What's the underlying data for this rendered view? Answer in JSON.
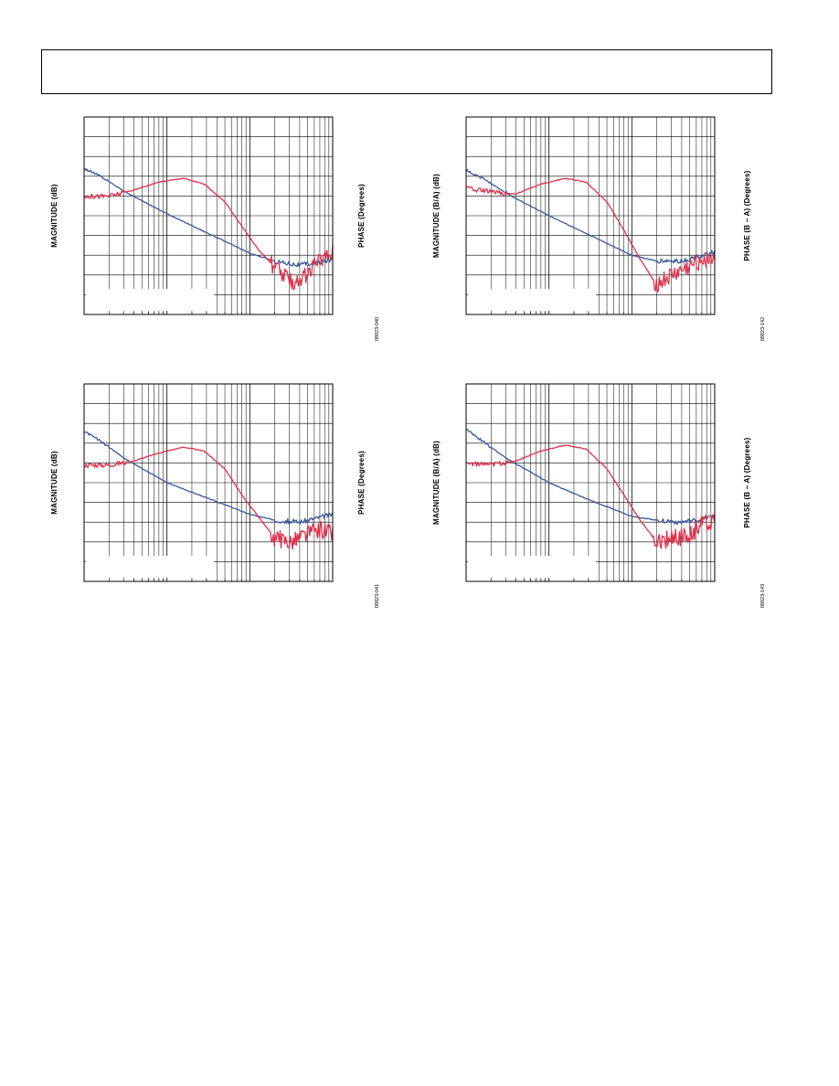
{
  "page": {
    "header_title": ""
  },
  "colors": {
    "magnitude": "#3a5a9a",
    "phase": "#e0304a",
    "grid": "#000000",
    "legend_bg": "#ffffff"
  },
  "chart_data": [
    {
      "type": "line",
      "ylabel": "MAGNITUDE (dB)",
      "ylabel_right": "PHASE (Degrees)",
      "figure_id": "08823-040",
      "x_scale": "log",
      "x_decades": 3,
      "y_divisions": 10,
      "grid": true,
      "series": [
        {
          "key": "magnitude",
          "color": "#3a5a9a",
          "x": [
            0,
            0.2,
            0.5,
            1.0,
            1.5,
            2.0,
            2.3,
            2.6,
            2.8,
            3.0
          ],
          "y": [
            0.74,
            0.7,
            0.62,
            0.51,
            0.41,
            0.31,
            0.27,
            0.25,
            0.26,
            0.28
          ]
        },
        {
          "key": "phase",
          "color": "#e0304a",
          "x": [
            0,
            0.3,
            0.6,
            0.9,
            1.2,
            1.45,
            1.7,
            1.9,
            2.1,
            2.3,
            2.5,
            2.7,
            2.85,
            3.0
          ],
          "y": [
            0.6,
            0.6,
            0.63,
            0.67,
            0.69,
            0.66,
            0.57,
            0.45,
            0.33,
            0.24,
            0.16,
            0.2,
            0.28,
            0.32
          ]
        }
      ]
    },
    {
      "type": "line",
      "ylabel": "MAGNITUDE (B/A) (dB)",
      "ylabel_right": "PHASE (B – A) (Degrees)",
      "figure_id": "08823-142",
      "x_scale": "log",
      "x_decades": 3,
      "y_divisions": 10,
      "grid": true,
      "series": [
        {
          "key": "magnitude",
          "color": "#3a5a9a",
          "x": [
            0,
            0.2,
            0.5,
            1.0,
            1.5,
            2.0,
            2.3,
            2.6,
            2.8,
            3.0
          ],
          "y": [
            0.73,
            0.69,
            0.61,
            0.5,
            0.4,
            0.3,
            0.27,
            0.27,
            0.29,
            0.32
          ]
        },
        {
          "key": "phase",
          "color": "#e0304a",
          "x": [
            0,
            0.3,
            0.6,
            0.9,
            1.2,
            1.45,
            1.7,
            1.9,
            2.1,
            2.3,
            2.5,
            2.7,
            2.85,
            3.0
          ],
          "y": [
            0.64,
            0.62,
            0.61,
            0.66,
            0.69,
            0.67,
            0.57,
            0.43,
            0.28,
            0.15,
            0.2,
            0.24,
            0.28,
            0.29
          ]
        }
      ]
    },
    {
      "type": "line",
      "ylabel": "MAGNITUDE (dB)",
      "ylabel_right": "PHASE (Degrees)",
      "figure_id": "08823-041",
      "x_scale": "log",
      "x_decades": 3,
      "y_divisions": 10,
      "grid": true,
      "series": [
        {
          "key": "magnitude",
          "color": "#3a5a9a",
          "x": [
            0,
            0.2,
            0.5,
            1.0,
            1.5,
            2.0,
            2.3,
            2.6,
            2.8,
            3.0
          ],
          "y": [
            0.76,
            0.71,
            0.62,
            0.5,
            0.42,
            0.34,
            0.31,
            0.3,
            0.32,
            0.34
          ]
        },
        {
          "key": "phase",
          "color": "#e0304a",
          "x": [
            0,
            0.3,
            0.6,
            0.9,
            1.2,
            1.45,
            1.7,
            1.9,
            2.1,
            2.3,
            2.5,
            2.7,
            2.85,
            3.0
          ],
          "y": [
            0.59,
            0.59,
            0.61,
            0.65,
            0.68,
            0.66,
            0.57,
            0.44,
            0.33,
            0.22,
            0.2,
            0.24,
            0.26,
            0.24
          ]
        }
      ]
    },
    {
      "type": "line",
      "ylabel": "MAGNITUDE (B/A) (dB)",
      "ylabel_right": "PHASE (B – A) (Degrees)",
      "figure_id": "08823-143",
      "x_scale": "log",
      "x_decades": 3,
      "y_divisions": 10,
      "grid": true,
      "series": [
        {
          "key": "magnitude",
          "color": "#3a5a9a",
          "x": [
            0,
            0.2,
            0.5,
            1.0,
            1.5,
            2.0,
            2.3,
            2.6,
            2.8,
            3.0
          ],
          "y": [
            0.77,
            0.71,
            0.62,
            0.5,
            0.41,
            0.33,
            0.31,
            0.3,
            0.31,
            0.33
          ]
        },
        {
          "key": "phase",
          "color": "#e0304a",
          "x": [
            0,
            0.3,
            0.6,
            0.9,
            1.2,
            1.45,
            1.7,
            1.9,
            2.1,
            2.3,
            2.5,
            2.7,
            2.85,
            3.0
          ],
          "y": [
            0.6,
            0.59,
            0.61,
            0.66,
            0.69,
            0.67,
            0.57,
            0.44,
            0.31,
            0.2,
            0.22,
            0.23,
            0.3,
            0.31
          ]
        }
      ]
    }
  ]
}
